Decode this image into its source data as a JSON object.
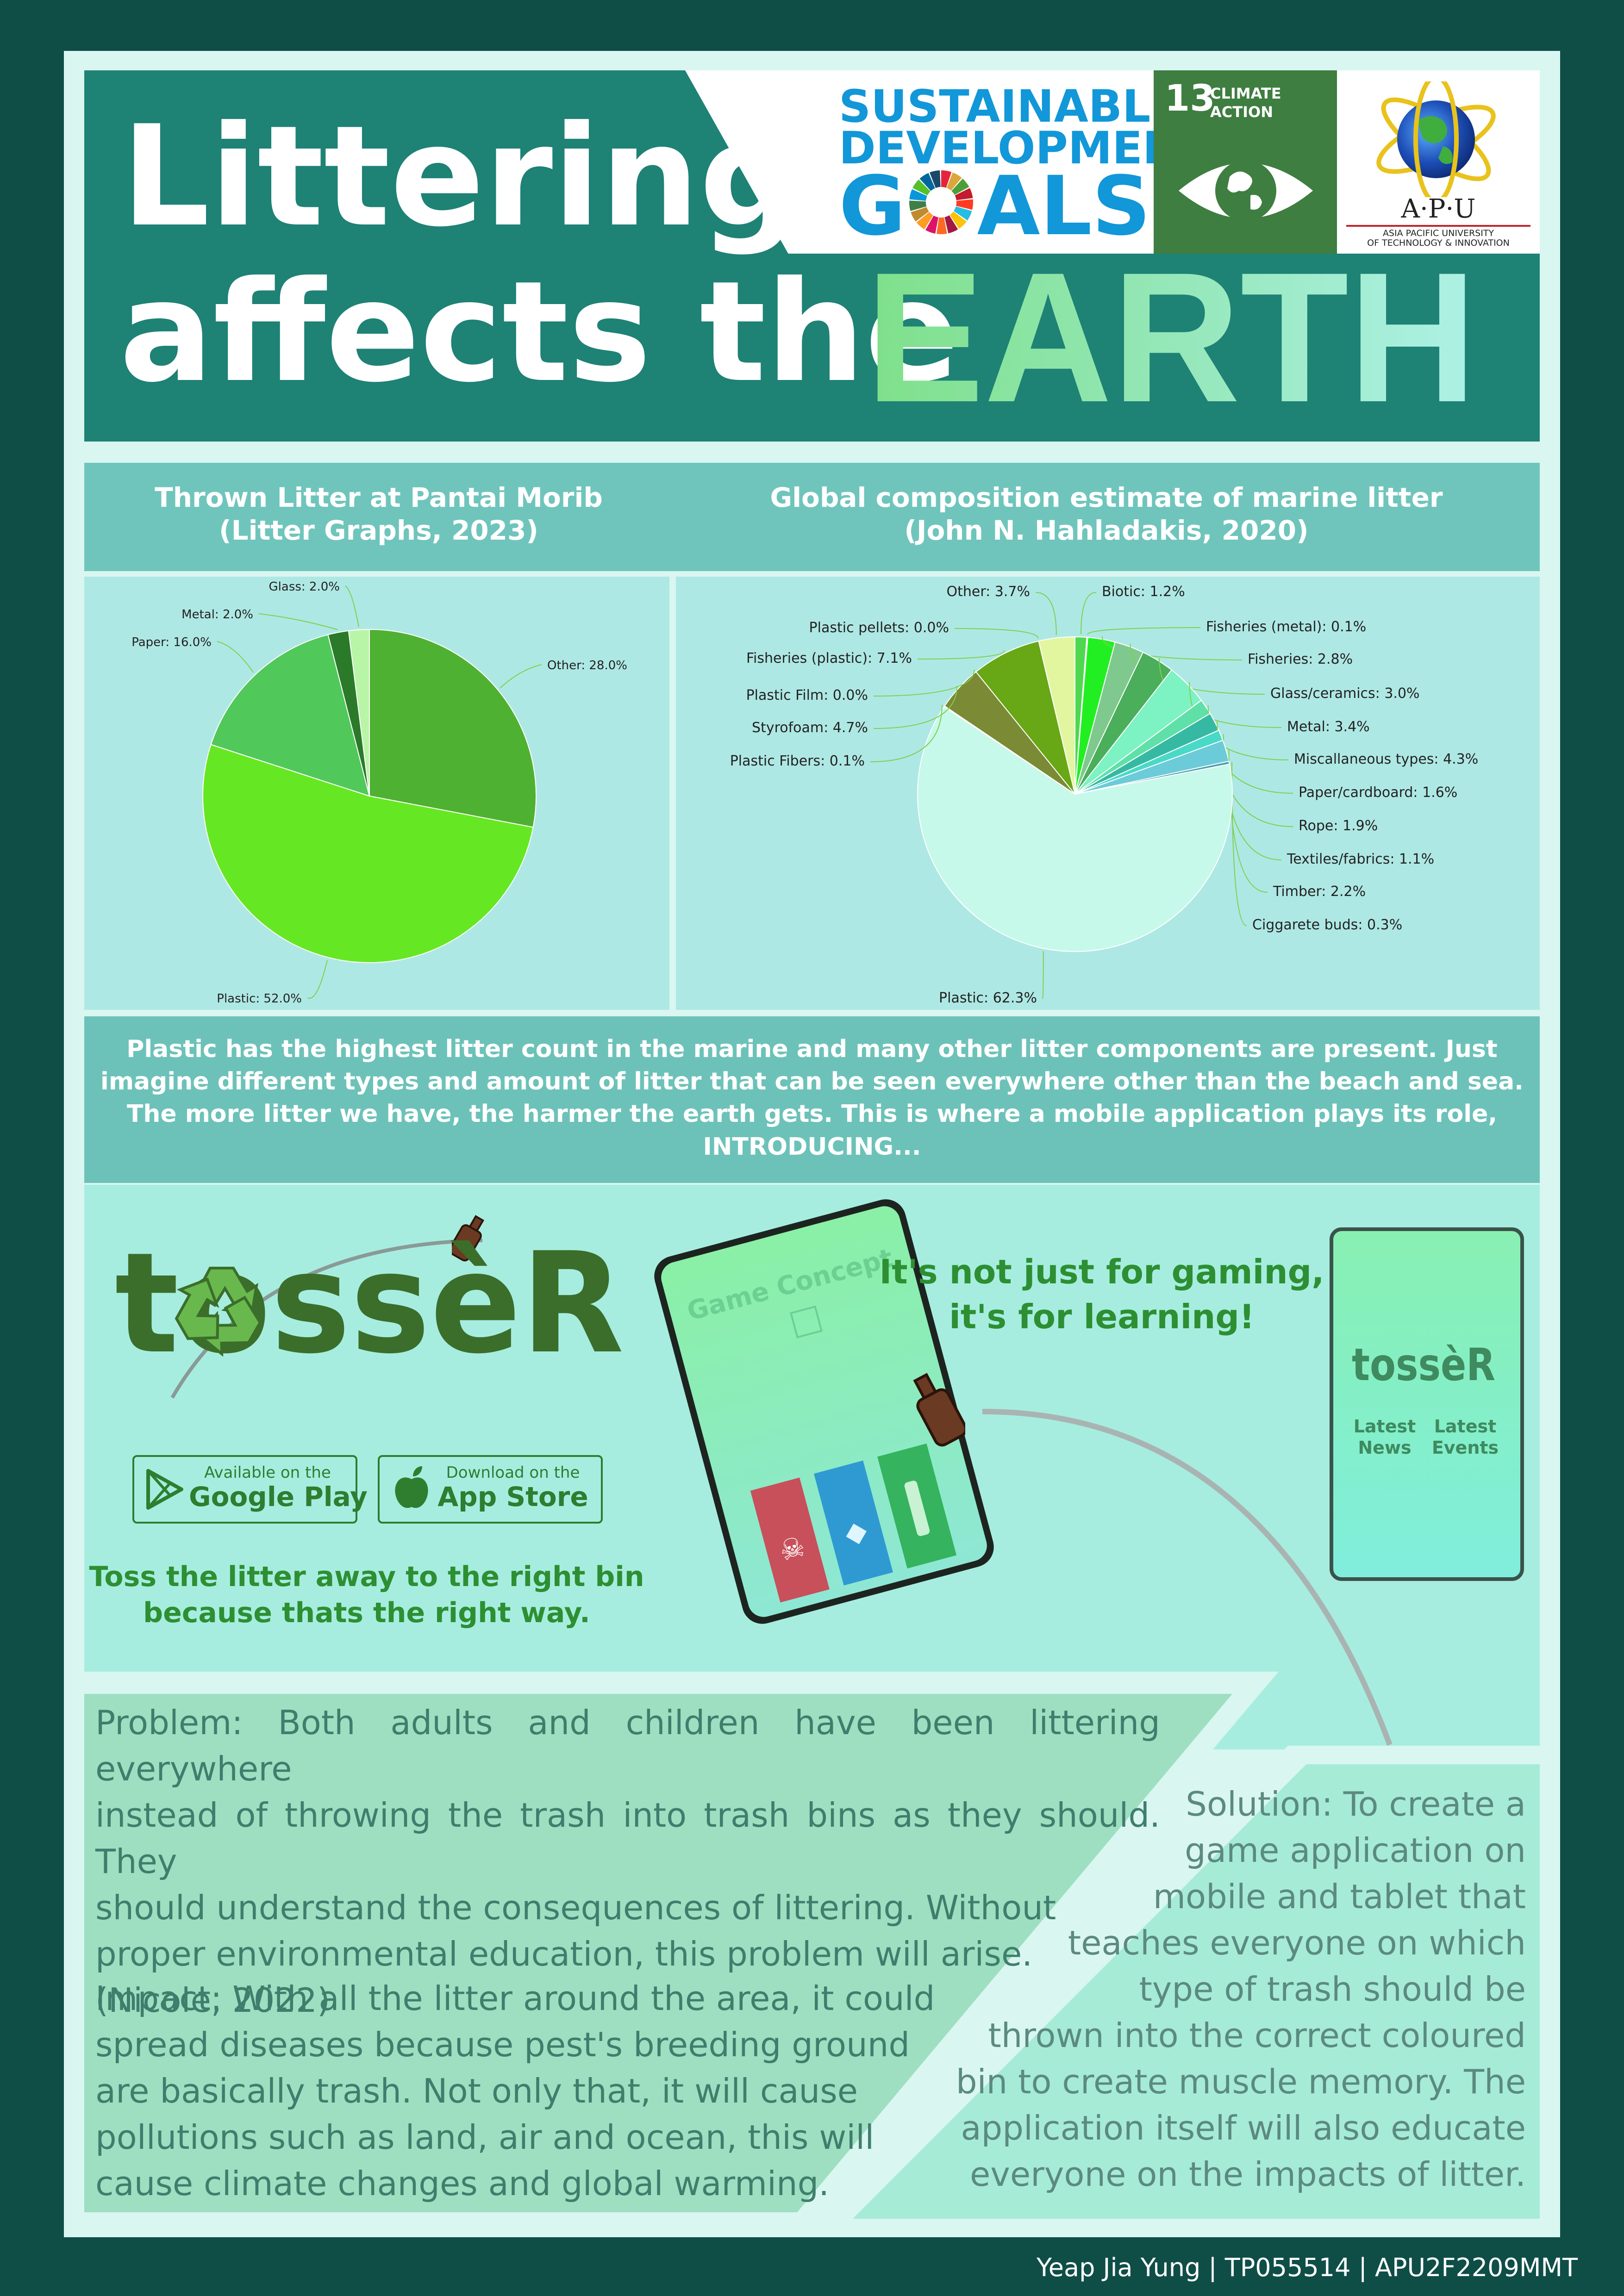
{
  "header": {
    "title_line1": "Littering",
    "title_line2": "affects the",
    "title_highlight": "EARTH",
    "sdg_line1": "SUSTAINABLE",
    "sdg_line2": "DEVELOPMENT",
    "sdg_line3_g": "G",
    "sdg_line3_rest": "ALS",
    "goal_number": "13",
    "goal_label_line1": "CLIMATE",
    "goal_label_line2": "ACTION",
    "uni_logo_text": "A·P·U",
    "uni_name_line1": "ASIA PACIFIC UNIVERSITY",
    "uni_name_line2": "OF TECHNOLOGY & INNOVATION"
  },
  "colors": {
    "background": "#0f4e47",
    "header": "#1e8275",
    "accent_green": "#2d8f32",
    "earth_gradient": [
      "#7ee08a",
      "#9be9c9",
      "#aef1e6"
    ]
  },
  "charts": {
    "left_title_line1": "Thrown Litter at Pantai Morib",
    "left_title_line2": "(Litter Graphs, 2023)",
    "right_title_line1": "Global composition estimate of marine litter",
    "right_title_line2": "(John N. Hahladakis, 2020)"
  },
  "chart_data": [
    {
      "type": "pie",
      "title": "Thrown Litter at Pantai Morib (Litter Graphs, 2023)",
      "categories": [
        "Other",
        "Plastic",
        "Paper",
        "Metal",
        "Glass"
      ],
      "values": [
        28.0,
        52.0,
        16.0,
        2.0,
        2.0
      ],
      "labels": [
        "Other: 28.0%",
        "Plastic: 52.0%",
        "Paper: 16.0%",
        "Metal: 2.0%",
        "Glass: 2.0%"
      ],
      "colors": [
        "#4fb131",
        "#66e723",
        "#51c85a",
        "#2a7a2a",
        "#b9f5a6"
      ]
    },
    {
      "type": "pie",
      "title": "Global composition estimate of marine litter (John N. Hahladakis, 2020)",
      "categories": [
        "Biotic",
        "Fisheries (metal)",
        "Fisheries",
        "Glass/ceramics",
        "Metal",
        "Miscallaneous types",
        "Paper/cardboard",
        "Rope",
        "Textiles/fabrics",
        "Timber",
        "Ciggarete buds",
        "Plastic",
        "Plastic Fibers",
        "Styrofoam",
        "Plastic Film",
        "Fisheries (plastic)",
        "Plastic pellets",
        "Other"
      ],
      "values": [
        1.2,
        0.1,
        2.8,
        3.0,
        3.4,
        4.3,
        1.6,
        1.9,
        1.1,
        2.2,
        0.3,
        62.3,
        0.1,
        4.7,
        0.0,
        7.1,
        0.0,
        3.7
      ],
      "labels": [
        "Biotic: 1.2%",
        "Fisheries (metal): 0.1%",
        "Fisheries: 2.8%",
        "Glass/ceramics: 3.0%",
        "Metal: 3.4%",
        "Miscallaneous types: 4.3%",
        "Paper/cardboard: 1.6%",
        "Rope: 1.9%",
        "Textiles/fabrics: 1.1%",
        "Timber: 2.2%",
        "Ciggarete buds: 0.3%",
        "Plastic: 62.3%",
        "Plastic Fibers: 0.1%",
        "Styrofoam: 4.7%",
        "Plastic Film: 0.0%",
        "Fisheries (plastic): 7.1%",
        "Plastic pellets: 0.0%",
        "Other: 3.7%"
      ],
      "colors": [
        "#4fd84f",
        "#3cae3c",
        "#22ef22",
        "#7fc98f",
        "#4aae5a",
        "#7df2c2",
        "#5fe0a8",
        "#36b9a2",
        "#49d9c7",
        "#6ccbd8",
        "#4ea0b0",
        "#c6f9ea",
        "#7a7a2a",
        "#7b8a34",
        "#5b7a20",
        "#68a715",
        "#3f6f10",
        "#e2f6a0"
      ]
    }
  ],
  "intro": {
    "line1": "Plastic has the highest litter count in the marine and many other litter components are present. Just",
    "line2": "imagine different types and amount of litter that can be seen everywhere other than the beach and sea.",
    "line3": "The more litter we have, the harmer the earth gets. This is where a mobile application plays its role,",
    "line4": "INTRODUCING..."
  },
  "app": {
    "logo_text": "tossèR",
    "google_small": "Available on the",
    "google_big": "Google Play",
    "apple_small": "Download on the",
    "apple_big": "App Store",
    "tagline_line1": "Toss the litter away to the right bin",
    "tagline_line2": "because thats the right way.",
    "phone_screen_label": "Game Concept",
    "learning_line1": "It's not just for gaming,",
    "learning_line2": "it's for learning!",
    "small_logo_text": "tossèR",
    "menu_news_line1": "Latest",
    "menu_news_line2": "News",
    "menu_events_line1": "Latest",
    "menu_events_line2": "Events"
  },
  "problem": {
    "line1": "Problem: Both adults and children have been littering everywhere",
    "line2": "instead of throwing the trash into trash bins as they should. They",
    "line3": "should understand the consequences of littering. Without",
    "line4": "proper environmental education, this problem will arise.",
    "line5": "(Nicole, 2022)"
  },
  "impact": {
    "line1": "Impact: With all the litter around the area, it could",
    "line2": "spread diseases because pest's breeding ground",
    "line3": "are basically trash. Not only that, it will cause",
    "line4": "pollutions such as land, air and ocean, this will",
    "line5": "cause climate changes and global warming."
  },
  "solution": {
    "line1": "Solution: To create a",
    "line2": "game application on",
    "line3": "mobile and tablet that",
    "line4": "teaches everyone on which",
    "line5": "type of trash should be",
    "line6": "thrown into the correct coloured",
    "line7": "bin to create muscle memory. The",
    "line8": "application itself will also educate",
    "line9": "everyone on the impacts of litter."
  },
  "footer": {
    "credit": "Yeap Jia Yung | TP055514 | APU2F2209MMT"
  }
}
